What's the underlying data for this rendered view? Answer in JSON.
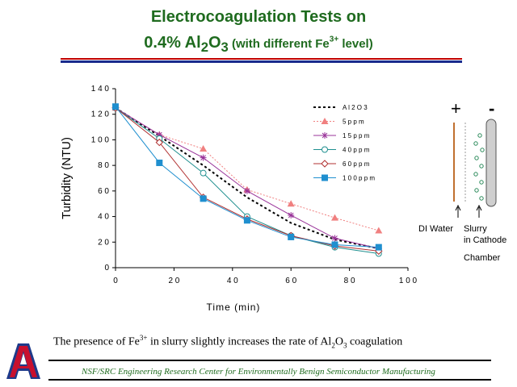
{
  "slide": {
    "title_line1": "Electrocoagulation Tests on",
    "title_line2_prefix": "0.4% Al",
    "title_line2_sub": "2",
    "title_line2_mid": "O",
    "title_line2_sub2": "3",
    "title_line2_suffix": " (with different Fe",
    "title_line2_sup": "3+",
    "title_line2_end": " level)",
    "footnote_pre": "The presence of Fe",
    "footnote_sup": "3+",
    "footnote_mid": " in slurry slightly  increases the rate of  Al",
    "footnote_sub1": "2",
    "footnote_mid2": "O",
    "footnote_sub2": "3",
    "footnote_end": " coagulation",
    "footer": "NSF/SRC Engineering Research Center for Environmentally Benign Semiconductor Manufacturing",
    "logo_letter": "A",
    "colors": {
      "title": "#1f6b1f",
      "rule_red": "#c00000",
      "rule_blue": "#1a2a8c",
      "logo_red": "#c8102e",
      "logo_blue": "#1e3a8a"
    }
  },
  "diagram": {
    "plus": "+",
    "minus": "-",
    "label_water": "DI Water",
    "label_slurry_1": "Slurry",
    "label_slurry_2": "in Cathode",
    "label_slurry_3": "Chamber"
  },
  "chart_data": {
    "type": "line",
    "xlabel": "Time (min)",
    "ylabel": "Turbidity (NTU)",
    "xlim": [
      0,
      100
    ],
    "ylim": [
      0,
      140
    ],
    "xticks": [
      0,
      20,
      40,
      60,
      80,
      100
    ],
    "yticks": [
      0,
      20,
      40,
      60,
      80,
      100,
      120,
      140
    ],
    "xtick_labels": [
      "0",
      "2 0",
      "4 0",
      "6 0",
      "8 0",
      "1 0 0"
    ],
    "ytick_labels": [
      "0",
      "2 0",
      "4 0",
      "6 0",
      "8 0",
      "1 0 0",
      "1 2 0",
      "1 4 0"
    ],
    "grid": false,
    "legend_position": "top-right",
    "series": [
      {
        "name": "A l 2 O 3",
        "color": "#000000",
        "dash": "dotted-heavy",
        "marker": "none",
        "x": [
          0,
          15,
          30,
          45,
          60,
          75,
          90
        ],
        "y": [
          125,
          103,
          80,
          55,
          35,
          22,
          15
        ]
      },
      {
        "name": "5  p p m",
        "color": "#f08080",
        "dash": "dotted",
        "marker": "triangle",
        "x": [
          0,
          15,
          30,
          45,
          60,
          75,
          90
        ],
        "y": [
          125,
          104,
          93,
          61,
          50,
          39,
          29
        ]
      },
      {
        "name": "1 5  p p m",
        "color": "#993399",
        "dash": "solid",
        "marker": "star",
        "x": [
          0,
          15,
          30,
          45,
          60,
          75,
          90
        ],
        "y": [
          125,
          104,
          86,
          60,
          41,
          23,
          15
        ]
      },
      {
        "name": "4 0  p p m",
        "color": "#1f8f8f",
        "dash": "solid",
        "marker": "circle",
        "x": [
          0,
          15,
          30,
          45,
          60,
          75,
          90
        ],
        "y": [
          125,
          101,
          74,
          40,
          25,
          16,
          11
        ]
      },
      {
        "name": "6 0  p p m",
        "color": "#b03030",
        "dash": "solid",
        "marker": "diamond",
        "x": [
          0,
          15,
          30,
          45,
          60,
          75,
          90
        ],
        "y": [
          125,
          98,
          55,
          38,
          25,
          17,
          13
        ]
      },
      {
        "name": "1 0 0  p p m",
        "color": "#1f8fcf",
        "dash": "solid",
        "marker": "square",
        "x": [
          0,
          15,
          30,
          45,
          60,
          75,
          90
        ],
        "y": [
          126,
          82,
          54,
          37,
          24,
          18,
          16
        ]
      }
    ]
  }
}
